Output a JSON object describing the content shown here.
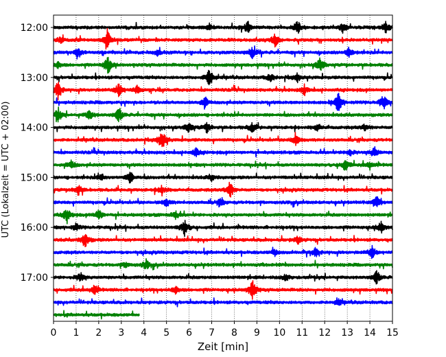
{
  "chart_data": {
    "type": "line",
    "subtype": "helicorder",
    "xlabel": "Zeit  [min]",
    "ylabel": "UTC (Lokalzeit = UTC + 02:00)",
    "xlim": [
      0,
      15
    ],
    "x_ticks": [
      0,
      1,
      2,
      3,
      4,
      5,
      6,
      7,
      8,
      9,
      10,
      11,
      12,
      13,
      14,
      15
    ],
    "y_tick_labels": [
      "12:00",
      "13:00",
      "14:00",
      "15:00",
      "16:00",
      "17:00"
    ],
    "trace_interval_min": 15,
    "grid": "vertical dotted",
    "colors": [
      "#000000",
      "#ff0000",
      "#0000ff",
      "#008000"
    ],
    "traces": [
      {
        "start": "12:00",
        "end_min": 15,
        "color": "#000000",
        "events": [
          {
            "t": 8.6,
            "a": 9
          },
          {
            "t": 10.8,
            "a": 10
          },
          {
            "t": 12.8,
            "a": 7
          },
          {
            "t": 14.7,
            "a": 8
          },
          {
            "t": 6.9,
            "a": 5
          }
        ]
      },
      {
        "start": "12:15",
        "end_min": 15,
        "color": "#ff0000",
        "events": [
          {
            "t": 2.4,
            "a": 14
          },
          {
            "t": 9.8,
            "a": 11
          },
          {
            "t": 0.3,
            "a": 4
          }
        ]
      },
      {
        "start": "12:30",
        "end_min": 15,
        "color": "#0000ff",
        "events": [
          {
            "t": 1.1,
            "a": 7
          },
          {
            "t": 8.8,
            "a": 9
          },
          {
            "t": 13.1,
            "a": 9
          },
          {
            "t": 4.6,
            "a": 4
          }
        ]
      },
      {
        "start": "12:45",
        "end_min": 15,
        "color": "#008000",
        "events": [
          {
            "t": 2.4,
            "a": 14
          },
          {
            "t": 11.8,
            "a": 11
          },
          {
            "t": 0.2,
            "a": 5
          }
        ]
      },
      {
        "start": "13:00",
        "end_min": 15,
        "color": "#000000",
        "events": [
          {
            "t": 6.9,
            "a": 16
          },
          {
            "t": 9.6,
            "a": 6
          },
          {
            "t": 10.8,
            "a": 6
          }
        ]
      },
      {
        "start": "13:15",
        "end_min": 15,
        "color": "#ff0000",
        "events": [
          {
            "t": 0.2,
            "a": 14
          },
          {
            "t": 2.9,
            "a": 11
          },
          {
            "t": 3.7,
            "a": 6
          },
          {
            "t": 11.1,
            "a": 7
          }
        ]
      },
      {
        "start": "13:30",
        "end_min": 15,
        "color": "#0000ff",
        "events": [
          {
            "t": 6.7,
            "a": 8
          },
          {
            "t": 12.6,
            "a": 15
          },
          {
            "t": 14.6,
            "a": 12
          }
        ]
      },
      {
        "start": "13:45",
        "end_min": 15,
        "color": "#008000",
        "events": [
          {
            "t": 0.2,
            "a": 9
          },
          {
            "t": 1.6,
            "a": 8
          },
          {
            "t": 2.9,
            "a": 11
          }
        ]
      },
      {
        "start": "14:00",
        "end_min": 15,
        "color": "#000000",
        "events": [
          {
            "t": 6.0,
            "a": 8
          },
          {
            "t": 6.8,
            "a": 7
          },
          {
            "t": 8.8,
            "a": 8
          },
          {
            "t": 11.7,
            "a": 5
          },
          {
            "t": 13.8,
            "a": 6
          }
        ]
      },
      {
        "start": "14:15",
        "end_min": 15,
        "color": "#ff0000",
        "events": [
          {
            "t": 4.8,
            "a": 16
          },
          {
            "t": 10.7,
            "a": 9
          }
        ]
      },
      {
        "start": "14:30",
        "end_min": 15,
        "color": "#0000ff",
        "events": [
          {
            "t": 6.3,
            "a": 6
          },
          {
            "t": 14.2,
            "a": 8
          },
          {
            "t": 13.1,
            "a": 5
          }
        ]
      },
      {
        "start": "14:45",
        "end_min": 15,
        "color": "#008000",
        "events": [
          {
            "t": 0.8,
            "a": 7
          },
          {
            "t": 12.9,
            "a": 9
          },
          {
            "t": 14.0,
            "a": 6
          }
        ]
      },
      {
        "start": "15:00",
        "end_min": 15,
        "color": "#000000",
        "events": [
          {
            "t": 3.4,
            "a": 9
          },
          {
            "t": 2.1,
            "a": 5
          },
          {
            "t": 7.0,
            "a": 4
          }
        ]
      },
      {
        "start": "15:15",
        "end_min": 15,
        "color": "#ff0000",
        "events": [
          {
            "t": 1.1,
            "a": 8
          },
          {
            "t": 7.8,
            "a": 14
          },
          {
            "t": 4.8,
            "a": 7
          }
        ]
      },
      {
        "start": "15:30",
        "end_min": 15,
        "color": "#0000ff",
        "events": [
          {
            "t": 5.0,
            "a": 6
          },
          {
            "t": 7.4,
            "a": 6
          },
          {
            "t": 14.3,
            "a": 9
          }
        ]
      },
      {
        "start": "15:45",
        "end_min": 15,
        "color": "#008000",
        "events": [
          {
            "t": 0.6,
            "a": 11
          },
          {
            "t": 2.0,
            "a": 8
          },
          {
            "t": 5.4,
            "a": 6
          }
        ]
      },
      {
        "start": "16:00",
        "end_min": 15,
        "color": "#000000",
        "events": [
          {
            "t": 5.8,
            "a": 12
          },
          {
            "t": 14.5,
            "a": 9
          },
          {
            "t": 1.0,
            "a": 5
          }
        ]
      },
      {
        "start": "16:15",
        "end_min": 15,
        "color": "#ff0000",
        "events": [
          {
            "t": 1.4,
            "a": 12
          },
          {
            "t": 10.8,
            "a": 6
          }
        ]
      },
      {
        "start": "16:30",
        "end_min": 15,
        "color": "#0000ff",
        "events": [
          {
            "t": 11.6,
            "a": 7
          },
          {
            "t": 14.1,
            "a": 9
          },
          {
            "t": 9.8,
            "a": 5
          }
        ]
      },
      {
        "start": "16:45",
        "end_min": 15,
        "color": "#008000",
        "events": [
          {
            "t": 4.1,
            "a": 7
          },
          {
            "t": 3.2,
            "a": 4
          }
        ]
      },
      {
        "start": "17:00",
        "end_min": 15,
        "color": "#000000",
        "events": [
          {
            "t": 1.2,
            "a": 7
          },
          {
            "t": 14.3,
            "a": 10
          },
          {
            "t": 10.3,
            "a": 5
          }
        ]
      },
      {
        "start": "17:15",
        "end_min": 15,
        "color": "#ff0000",
        "events": [
          {
            "t": 8.8,
            "a": 16
          },
          {
            "t": 1.8,
            "a": 8
          },
          {
            "t": 5.4,
            "a": 6
          }
        ]
      },
      {
        "start": "17:30",
        "end_min": 15,
        "color": "#0000ff",
        "events": [
          {
            "t": 12.6,
            "a": 5
          }
        ]
      },
      {
        "start": "17:45",
        "end_min": 3.8,
        "color": "#008000",
        "events": []
      }
    ]
  }
}
